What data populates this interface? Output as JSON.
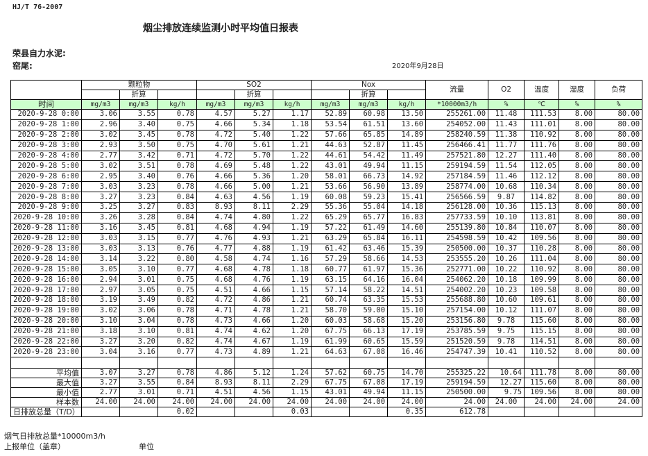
{
  "standard": "HJ/T  76-2007",
  "title": "烟尘排放连续监测小时平均值日报表",
  "company": "荣县自力水泥:",
  "kiln": "窑尾:",
  "date": "2020年9月28日",
  "header": {
    "groups": [
      "颗粒物",
      "SO2",
      "Nox"
    ],
    "converted": "折算",
    "flow": "流量",
    "o2": "O2",
    "temperature": "温度",
    "humidity": "湿度",
    "load": "负荷",
    "units": [
      "时间",
      "mg/m3",
      "mg/m3",
      "kg/h",
      "mg/m3",
      "mg/m3",
      "kg/h",
      "mg/m3",
      "mg/m3",
      "kg/h",
      "*10000m3/h",
      "%",
      "℃",
      "%",
      "%"
    ]
  },
  "header_bg": "#ccffcc",
  "rows": [
    [
      "2020-9-28 0:00",
      "3.06",
      "3.55",
      "0.78",
      "4.57",
      "5.27",
      "1.17",
      "52.89",
      "60.98",
      "13.50",
      "255261.00",
      "11.48",
      "111.53",
      "8.00",
      "80.00"
    ],
    [
      "2020-9-28 1:00",
      "2.96",
      "3.40",
      "0.75",
      "4.66",
      "5.34",
      "1.18",
      "53.54",
      "61.51",
      "13.60",
      "254052.00",
      "11.43",
      "111.01",
      "8.00",
      "80.00"
    ],
    [
      "2020-9-28 2:00",
      "3.02",
      "3.45",
      "0.78",
      "4.72",
      "5.40",
      "1.22",
      "57.66",
      "65.85",
      "14.89",
      "258240.59",
      "11.38",
      "110.92",
      "8.00",
      "80.00"
    ],
    [
      "2020-9-28 3:00",
      "2.93",
      "3.50",
      "0.75",
      "4.70",
      "5.61",
      "1.21",
      "44.63",
      "52.87",
      "11.45",
      "256466.41",
      "11.77",
      "111.76",
      "8.00",
      "80.00"
    ],
    [
      "2020-9-28 4:00",
      "2.77",
      "3.42",
      "0.71",
      "4.72",
      "5.70",
      "1.22",
      "44.61",
      "54.42",
      "11.49",
      "257521.80",
      "12.27",
      "111.40",
      "8.00",
      "80.00"
    ],
    [
      "2020-9-28 5:00",
      "3.02",
      "3.51",
      "0.78",
      "4.69",
      "5.48",
      "1.22",
      "43.01",
      "49.94",
      "11.15",
      "259194.59",
      "11.54",
      "112.05",
      "8.00",
      "80.00"
    ],
    [
      "2020-9-28 6:00",
      "2.95",
      "3.40",
      "0.76",
      "4.66",
      "5.36",
      "1.20",
      "58.01",
      "66.73",
      "14.92",
      "257184.59",
      "11.46",
      "112.12",
      "8.00",
      "80.00"
    ],
    [
      "2020-9-28 7:00",
      "3.03",
      "3.23",
      "0.78",
      "4.66",
      "5.00",
      "1.21",
      "53.66",
      "56.90",
      "13.89",
      "258774.00",
      "10.68",
      "110.34",
      "8.00",
      "80.00"
    ],
    [
      "2020-9-28 8:00",
      "3.27",
      "3.23",
      "0.84",
      "4.63",
      "4.56",
      "1.19",
      "60.08",
      "59.23",
      "15.41",
      "256566.59",
      "9.87",
      "114.82",
      "8.00",
      "80.00"
    ],
    [
      "2020-9-28 9:00",
      "3.25",
      "3.27",
      "0.83",
      "8.93",
      "8.11",
      "2.29",
      "55.36",
      "55.04",
      "14.18",
      "256128.00",
      "10.36",
      "115.13",
      "8.00",
      "80.00"
    ],
    [
      "2020-9-28 10:00",
      "3.26",
      "3.28",
      "0.84",
      "4.74",
      "4.80",
      "1.22",
      "65.29",
      "65.77",
      "16.83",
      "257733.59",
      "10.10",
      "113.81",
      "8.00",
      "80.00"
    ],
    [
      "2020-9-28 11:00",
      "3.16",
      "3.45",
      "0.81",
      "4.68",
      "4.94",
      "1.19",
      "57.22",
      "61.49",
      "14.60",
      "255139.80",
      "10.84",
      "110.07",
      "8.00",
      "80.00"
    ],
    [
      "2020-9-28 12:00",
      "3.03",
      "3.15",
      "0.77",
      "4.76",
      "4.93",
      "1.21",
      "63.29",
      "65.84",
      "16.11",
      "254598.59",
      "10.42",
      "109.56",
      "8.00",
      "80.00"
    ],
    [
      "2020-9-28 13:00",
      "3.03",
      "3.13",
      "0.76",
      "4.77",
      "4.88",
      "1.19",
      "61.42",
      "63.46",
      "15.39",
      "250500.00",
      "10.37",
      "110.28",
      "8.00",
      "80.00"
    ],
    [
      "2020-9-28 14:00",
      "3.14",
      "3.22",
      "0.80",
      "4.58",
      "4.74",
      "1.16",
      "57.29",
      "58.66",
      "14.53",
      "253555.20",
      "10.26",
      "111.04",
      "8.00",
      "80.00"
    ],
    [
      "2020-9-28 15:00",
      "3.05",
      "3.10",
      "0.77",
      "4.68",
      "4.78",
      "1.18",
      "60.77",
      "61.97",
      "15.36",
      "252771.00",
      "10.22",
      "110.92",
      "8.00",
      "80.00"
    ],
    [
      "2020-9-28 16:00",
      "2.94",
      "3.01",
      "0.75",
      "4.68",
      "4.76",
      "1.19",
      "63.15",
      "64.16",
      "16.04",
      "254062.20",
      "10.18",
      "109.99",
      "8.00",
      "80.00"
    ],
    [
      "2020-9-28 17:00",
      "2.97",
      "3.05",
      "0.75",
      "4.51",
      "4.66",
      "1.15",
      "57.14",
      "58.22",
      "14.51",
      "254002.20",
      "10.23",
      "109.58",
      "8.00",
      "80.00"
    ],
    [
      "2020-9-28 18:00",
      "3.19",
      "3.49",
      "0.82",
      "4.72",
      "4.86",
      "1.21",
      "60.74",
      "63.35",
      "15.53",
      "255688.80",
      "10.60",
      "109.61",
      "8.00",
      "80.00"
    ],
    [
      "2020-9-28 19:00",
      "3.02",
      "3.06",
      "0.78",
      "4.71",
      "4.78",
      "1.21",
      "58.70",
      "59.00",
      "15.10",
      "257154.00",
      "10.12",
      "111.07",
      "8.00",
      "80.00"
    ],
    [
      "2020-9-28 20:00",
      "3.10",
      "3.04",
      "0.78",
      "4.73",
      "4.66",
      "1.20",
      "60.03",
      "58.68",
      "15.20",
      "253156.80",
      "9.78",
      "115.60",
      "8.00",
      "80.00"
    ],
    [
      "2020-9-28 21:00",
      "3.18",
      "3.10",
      "0.81",
      "4.74",
      "4.62",
      "1.20",
      "67.75",
      "66.13",
      "17.19",
      "253785.59",
      "9.75",
      "115.15",
      "8.00",
      "80.00"
    ],
    [
      "2020-9-28 22:00",
      "3.27",
      "3.20",
      "0.82",
      "4.74",
      "4.67",
      "1.19",
      "61.99",
      "60.65",
      "15.59",
      "251520.59",
      "9.78",
      "114.51",
      "8.00",
      "80.00"
    ],
    [
      "2020-9-28 23:00",
      "3.04",
      "3.16",
      "0.77",
      "4.73",
      "4.89",
      "1.21",
      "64.63",
      "67.08",
      "16.46",
      "254747.39",
      "10.41",
      "110.52",
      "8.00",
      "80.00"
    ]
  ],
  "summary": [
    [
      "平均值",
      "3.07",
      "3.27",
      "0.78",
      "4.86",
      "5.12",
      "1.24",
      "57.62",
      "60.75",
      "14.70",
      "255325.22",
      "10.64",
      "111.78",
      "8.00",
      "80.00"
    ],
    [
      "最大值",
      "3.27",
      "3.55",
      "0.84",
      "8.93",
      "8.11",
      "2.29",
      "67.75",
      "67.08",
      "17.19",
      "259194.59",
      "12.27",
      "115.60",
      "8.00",
      "80.00"
    ],
    [
      "最小值",
      "2.77",
      "3.01",
      "0.71",
      "4.51",
      "4.56",
      "1.15",
      "43.01",
      "49.94",
      "11.15",
      "250500.00",
      "9.75",
      "109.56",
      "8.00",
      "80.00"
    ],
    [
      "样本数",
      "24.00",
      "24.00",
      "24.00",
      "24.00",
      "24.00",
      "24.00",
      "24.00",
      "24.00",
      "24.00",
      "24.00",
      "24.00",
      "24.00",
      "24.00",
      "24.00"
    ],
    [
      "日排放总量（T/D）",
      "",
      "",
      "0.02",
      "",
      "",
      "0.03",
      "",
      "",
      "0.35",
      "612.78",
      "",
      "",
      "",
      ""
    ]
  ],
  "footer": {
    "flue_gas_total": "烟气日排放总量*10000m3/h",
    "reporting_unit": "上报单位（盖章）",
    "unit": "单位"
  }
}
